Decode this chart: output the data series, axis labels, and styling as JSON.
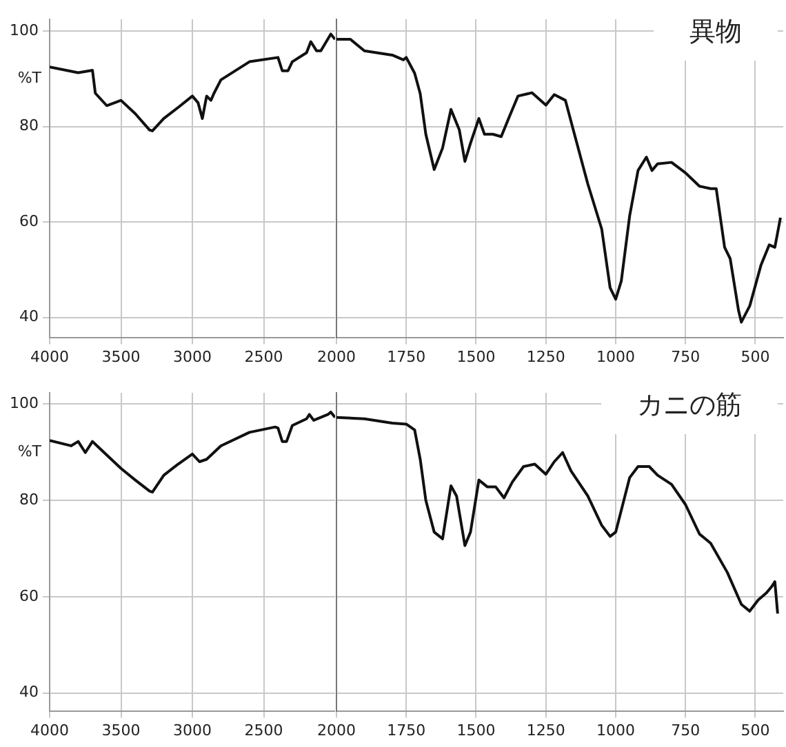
{
  "chart_data": [
    {
      "type": "line",
      "ylabel": "%T",
      "color": "#111111",
      "grid": true,
      "marker": "none",
      "line_style": "solid",
      "xlim": [
        4000,
        2000
      ],
      "xticks": [
        4000,
        3500,
        3000,
        2500
      ],
      "ylim": [
        35.8,
        102.5
      ],
      "yticks": [
        40,
        60,
        80,
        100
      ],
      "x": [
        4000,
        3800,
        3700,
        3680,
        3600,
        3500,
        3400,
        3300,
        3280,
        3200,
        3100,
        3000,
        2960,
        2930,
        2900,
        2870,
        2850,
        2800,
        2600,
        2400,
        2370,
        2330,
        2300,
        2200,
        2170,
        2130,
        2100,
        2030,
        2000
      ],
      "values": [
        92.5,
        91.3,
        91.8,
        87,
        84.4,
        85.5,
        82.7,
        79.3,
        79.1,
        81.7,
        84,
        86.4,
        85,
        81.7,
        86.4,
        85.5,
        86.9,
        89.8,
        93.6,
        94.5,
        91.7,
        91.7,
        93.6,
        95.5,
        97.8,
        95.9,
        95.9,
        99.4,
        98.3
      ]
    },
    {
      "type": "line",
      "title": "異物",
      "color": "#111111",
      "grid": true,
      "marker": "none",
      "line_style": "solid",
      "tick_labels": "x",
      "xlim": [
        2000,
        400
      ],
      "xticks": [
        2000,
        1750,
        1500,
        1250,
        1000,
        750,
        500
      ],
      "ylim": [
        35.8,
        102.5
      ],
      "yticks": [
        40,
        60,
        80,
        100
      ],
      "x": [
        2000,
        1950,
        1900,
        1800,
        1760,
        1750,
        1720,
        1700,
        1680,
        1650,
        1620,
        1590,
        1560,
        1540,
        1520,
        1490,
        1470,
        1440,
        1410,
        1380,
        1350,
        1300,
        1250,
        1220,
        1180,
        1150,
        1100,
        1050,
        1020,
        1000,
        980,
        950,
        920,
        890,
        870,
        850,
        800,
        750,
        700,
        660,
        640,
        610,
        590,
        560,
        550,
        520,
        480,
        450,
        430,
        410
      ],
      "values": [
        98.3,
        98.3,
        95.9,
        95,
        94,
        94.5,
        91.2,
        86.9,
        78.4,
        71,
        75.5,
        83.6,
        79.3,
        72.7,
        76.5,
        81.7,
        78.4,
        78.4,
        77.9,
        82.2,
        86.4,
        87.1,
        84.5,
        86.7,
        85.5,
        78.9,
        68,
        58.5,
        46.2,
        43.8,
        47.6,
        61.3,
        70.8,
        73.6,
        70.8,
        72.2,
        72.5,
        70.3,
        67.5,
        67,
        67,
        54.7,
        52.3,
        41.4,
        39,
        42.4,
        50.9,
        55.2,
        54.7,
        60.9
      ]
    },
    {
      "type": "line",
      "ylabel": "%T",
      "color": "#111111",
      "grid": true,
      "marker": "none",
      "line_style": "solid",
      "xlim": [
        4000,
        2000
      ],
      "xticks": [
        4000,
        3500,
        3000,
        2500
      ],
      "ylim": [
        36.3,
        102.3
      ],
      "yticks": [
        40,
        60,
        80,
        100
      ],
      "x": [
        4000,
        3850,
        3800,
        3750,
        3700,
        3650,
        3600,
        3500,
        3400,
        3300,
        3280,
        3200,
        3100,
        3000,
        2950,
        2900,
        2800,
        2600,
        2420,
        2400,
        2370,
        2340,
        2300,
        2200,
        2180,
        2150,
        2050,
        2030,
        2000
      ],
      "values": [
        92.4,
        91.3,
        92.2,
        89.9,
        92.2,
        90.8,
        89.4,
        86.6,
        84.2,
        81.9,
        81.7,
        85.2,
        87.5,
        89.6,
        88,
        88.5,
        91.3,
        94.1,
        95.2,
        95,
        92.2,
        92.2,
        95.5,
        96.9,
        97.8,
        96.6,
        97.8,
        98.3,
        97.2
      ]
    },
    {
      "type": "line",
      "title": "カニの筋",
      "color": "#111111",
      "grid": true,
      "marker": "none",
      "line_style": "solid",
      "tick_labels": "x",
      "xlim": [
        2000,
        400
      ],
      "xticks": [
        2000,
        1750,
        1500,
        1250,
        1000,
        750,
        500
      ],
      "ylim": [
        36.3,
        102.3
      ],
      "yticks": [
        40,
        60,
        80,
        100
      ],
      "x": [
        2000,
        1900,
        1800,
        1750,
        1720,
        1700,
        1680,
        1650,
        1620,
        1590,
        1570,
        1540,
        1520,
        1490,
        1460,
        1430,
        1400,
        1370,
        1330,
        1290,
        1250,
        1220,
        1190,
        1160,
        1100,
        1050,
        1020,
        1000,
        950,
        920,
        880,
        850,
        800,
        750,
        700,
        660,
        600,
        550,
        520,
        490,
        460,
        440,
        430,
        420
      ],
      "values": [
        97.2,
        96.9,
        96,
        95.8,
        94.6,
        88.5,
        80,
        73.4,
        72,
        83,
        80.9,
        70.6,
        73.4,
        84.2,
        82.8,
        82.8,
        80.5,
        83.8,
        87,
        87.5,
        85.4,
        88,
        89.9,
        86.1,
        80.9,
        74.8,
        72.5,
        73.4,
        84.7,
        87,
        87,
        85.2,
        83.3,
        79.1,
        73,
        71.1,
        65,
        58.4,
        57,
        59.3,
        60.8,
        62.2,
        63.1,
        56.5
      ]
    }
  ]
}
